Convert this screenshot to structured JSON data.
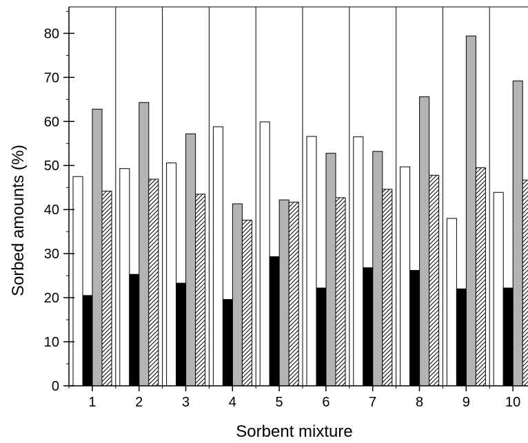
{
  "chart_data": {
    "type": "bar",
    "title": "",
    "xlabel": "Sorbent mixture",
    "ylabel": "Sorbed amounts (%)",
    "ylim": [
      0,
      86
    ],
    "yticks": [
      0,
      10,
      20,
      30,
      40,
      50,
      60,
      70,
      80
    ],
    "categories": [
      "1",
      "2",
      "3",
      "4",
      "5",
      "6",
      "7",
      "8",
      "9",
      "10"
    ],
    "series": [
      {
        "fill": "#ffffff",
        "pattern": "none",
        "values": [
          47.5,
          49.3,
          50.6,
          58.8,
          59.9,
          56.6,
          56.5,
          49.7,
          38.0,
          43.9
        ]
      },
      {
        "fill": "#000000",
        "pattern": "none",
        "values": [
          20.5,
          25.3,
          23.3,
          19.6,
          29.3,
          22.2,
          26.8,
          26.2,
          22.0,
          22.2
        ]
      },
      {
        "fill": "#b4b4b4",
        "pattern": "none",
        "values": [
          62.8,
          64.3,
          57.2,
          41.3,
          42.2,
          52.8,
          53.2,
          65.6,
          79.4,
          69.2
        ]
      },
      {
        "fill": "#ffffff",
        "pattern": "hatch",
        "values": [
          44.2,
          46.9,
          43.5,
          37.6,
          41.7,
          42.7,
          44.6,
          47.8,
          49.5,
          46.7
        ]
      }
    ],
    "grid": "vertical separators between groups",
    "legend": "none"
  }
}
